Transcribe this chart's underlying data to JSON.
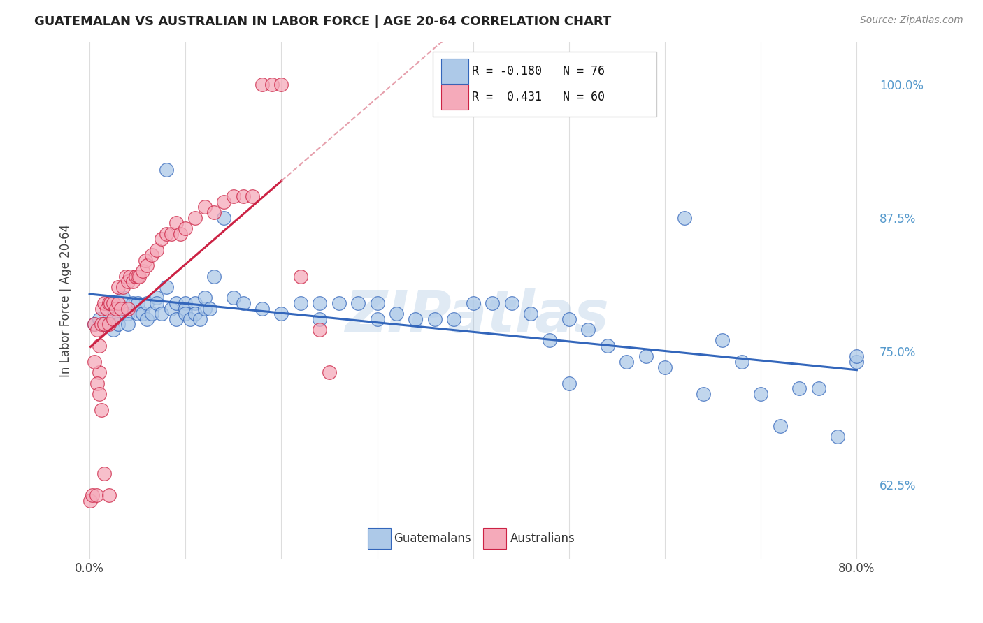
{
  "title": "GUATEMALAN VS AUSTRALIAN IN LABOR FORCE | AGE 20-64 CORRELATION CHART",
  "source": "Source: ZipAtlas.com",
  "ylabel": "In Labor Force | Age 20-64",
  "xlabel_guatemalans": "Guatemalans",
  "xlabel_australians": "Australians",
  "watermark": "ZIPatlas",
  "legend_blue_R": "-0.180",
  "legend_blue_N": "76",
  "legend_pink_R": " 0.431",
  "legend_pink_N": "60",
  "ylim": [
    0.555,
    1.04
  ],
  "xlim": [
    -0.012,
    0.82
  ],
  "blue_color": "#adc9e8",
  "pink_color": "#f5aaba",
  "blue_line_color": "#3366bb",
  "pink_line_color": "#cc2244",
  "pink_dashed_color": "#e08898",
  "grid_color": "#dddddd",
  "background_color": "#ffffff",
  "right_label_color": "#5599cc",
  "title_color": "#222222",
  "source_color": "#888888",
  "tick_color": "#444444",
  "blue_scatter_x": [
    0.005,
    0.01,
    0.015,
    0.02,
    0.025,
    0.025,
    0.03,
    0.03,
    0.035,
    0.04,
    0.04,
    0.045,
    0.05,
    0.05,
    0.055,
    0.06,
    0.06,
    0.065,
    0.07,
    0.07,
    0.075,
    0.08,
    0.08,
    0.085,
    0.09,
    0.09,
    0.1,
    0.1,
    0.1,
    0.105,
    0.11,
    0.11,
    0.115,
    0.12,
    0.12,
    0.125,
    0.13,
    0.14,
    0.15,
    0.16,
    0.18,
    0.2,
    0.22,
    0.24,
    0.24,
    0.26,
    0.28,
    0.3,
    0.3,
    0.32,
    0.34,
    0.36,
    0.38,
    0.4,
    0.42,
    0.44,
    0.46,
    0.48,
    0.5,
    0.5,
    0.52,
    0.54,
    0.56,
    0.58,
    0.6,
    0.62,
    0.64,
    0.66,
    0.68,
    0.7,
    0.72,
    0.74,
    0.76,
    0.78,
    0.8,
    0.8
  ],
  "blue_scatter_y": [
    0.775,
    0.78,
    0.775,
    0.785,
    0.77,
    0.79,
    0.785,
    0.775,
    0.8,
    0.785,
    0.775,
    0.795,
    0.795,
    0.785,
    0.785,
    0.795,
    0.78,
    0.785,
    0.8,
    0.795,
    0.785,
    0.92,
    0.81,
    0.79,
    0.795,
    0.78,
    0.795,
    0.79,
    0.785,
    0.78,
    0.795,
    0.785,
    0.78,
    0.79,
    0.8,
    0.79,
    0.82,
    0.875,
    0.8,
    0.795,
    0.79,
    0.785,
    0.795,
    0.795,
    0.78,
    0.795,
    0.795,
    0.795,
    0.78,
    0.785,
    0.78,
    0.78,
    0.78,
    0.795,
    0.795,
    0.795,
    0.785,
    0.76,
    0.72,
    0.78,
    0.77,
    0.755,
    0.74,
    0.745,
    0.735,
    0.875,
    0.71,
    0.76,
    0.74,
    0.71,
    0.68,
    0.715,
    0.715,
    0.67,
    0.74,
    0.745
  ],
  "pink_scatter_x": [
    0.001,
    0.003,
    0.005,
    0.007,
    0.008,
    0.01,
    0.01,
    0.012,
    0.013,
    0.015,
    0.015,
    0.018,
    0.02,
    0.02,
    0.022,
    0.025,
    0.025,
    0.028,
    0.03,
    0.03,
    0.033,
    0.035,
    0.038,
    0.04,
    0.04,
    0.042,
    0.045,
    0.048,
    0.05,
    0.052,
    0.055,
    0.058,
    0.06,
    0.065,
    0.07,
    0.075,
    0.08,
    0.085,
    0.09,
    0.095,
    0.1,
    0.11,
    0.12,
    0.13,
    0.14,
    0.15,
    0.16,
    0.17,
    0.18,
    0.19,
    0.2,
    0.22,
    0.24,
    0.25,
    0.005,
    0.008,
    0.01,
    0.012,
    0.015,
    0.02
  ],
  "pink_scatter_y": [
    0.61,
    0.615,
    0.775,
    0.615,
    0.77,
    0.73,
    0.755,
    0.775,
    0.79,
    0.775,
    0.795,
    0.79,
    0.795,
    0.775,
    0.795,
    0.795,
    0.78,
    0.79,
    0.795,
    0.81,
    0.79,
    0.81,
    0.82,
    0.815,
    0.79,
    0.82,
    0.815,
    0.82,
    0.82,
    0.82,
    0.825,
    0.835,
    0.83,
    0.84,
    0.845,
    0.855,
    0.86,
    0.86,
    0.87,
    0.86,
    0.865,
    0.875,
    0.885,
    0.88,
    0.89,
    0.895,
    0.895,
    0.895,
    1.0,
    1.0,
    1.0,
    0.82,
    0.77,
    0.73,
    0.74,
    0.72,
    0.71,
    0.695,
    0.635,
    0.615
  ]
}
